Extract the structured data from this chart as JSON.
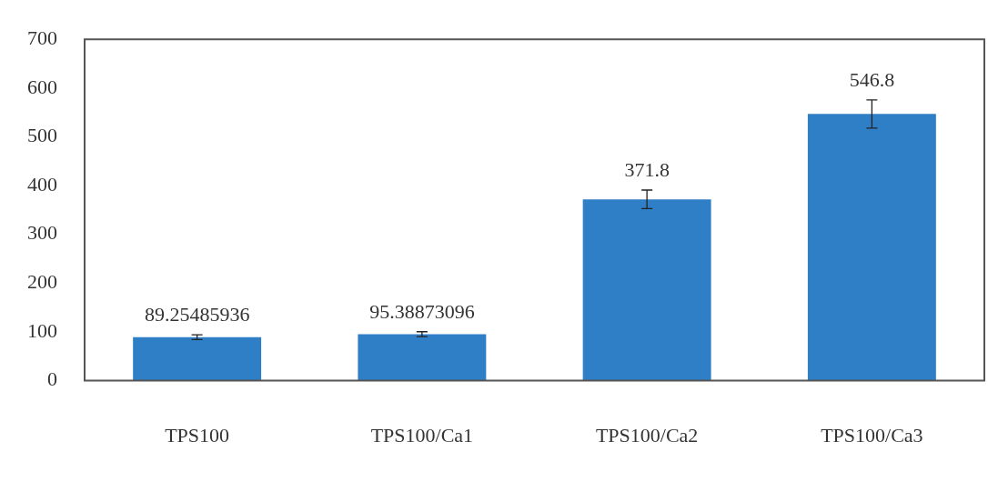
{
  "chart_data": {
    "type": "bar",
    "categories": [
      "TPS100",
      "TPS100/Ca1",
      "TPS100/Ca2",
      "TPS100/Ca3"
    ],
    "values": [
      89.25485936,
      95.38873096,
      371.8,
      546.8
    ],
    "errors": [
      5,
      5,
      19,
      29
    ],
    "color": "#2f7fc6",
    "ylim": [
      0,
      700
    ],
    "yticks": [
      0,
      100,
      200,
      300,
      400,
      500,
      600,
      700
    ],
    "grid": false,
    "legend": false,
    "data_labels": true
  }
}
